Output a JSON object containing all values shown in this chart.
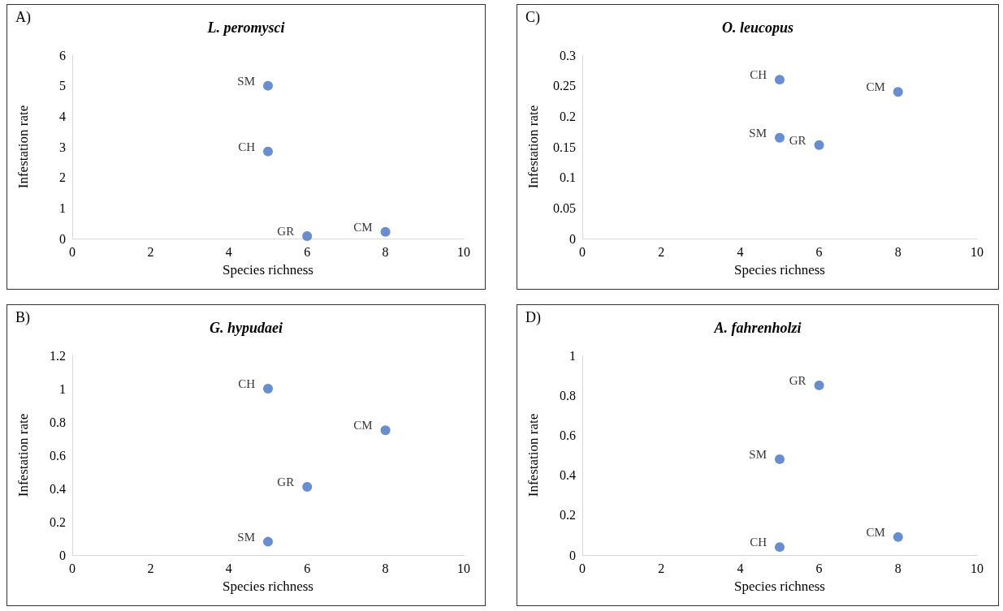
{
  "chart_data": [
    {
      "type": "scatter",
      "title": "L. peromysci",
      "annotations": [
        "A)"
      ],
      "xlabel": "Species richness",
      "ylabel": "Infestation rate",
      "xlim": [
        0,
        10
      ],
      "xticks": [
        0,
        2,
        4,
        6,
        8,
        10
      ],
      "ylim": [
        0,
        6
      ],
      "yticks": [
        0,
        1,
        2,
        3,
        4,
        5,
        6
      ],
      "grid": false,
      "legend": false,
      "marker": "circle",
      "series": [
        {
          "name": "SM",
          "color": "#4472c4",
          "x": [
            5
          ],
          "values": [
            5.0
          ]
        },
        {
          "name": "CH",
          "color": "#4472c4",
          "x": [
            5
          ],
          "values": [
            2.85
          ]
        },
        {
          "name": "GR",
          "color": "#4472c4",
          "x": [
            6
          ],
          "values": [
            0.08
          ]
        },
        {
          "name": "CM",
          "color": "#4472c4",
          "x": [
            8
          ],
          "values": [
            0.22
          ]
        }
      ]
    },
    {
      "type": "scatter",
      "title": "O. leucopus",
      "annotations": [
        "C)"
      ],
      "xlabel": "Species richness",
      "ylabel": "Infestation rate",
      "xlim": [
        0,
        10
      ],
      "xticks": [
        0,
        2,
        4,
        6,
        8,
        10
      ],
      "ylim": [
        0,
        0.3
      ],
      "yticks": [
        0,
        0.05,
        0.1,
        0.15,
        0.2,
        0.25,
        0.3
      ],
      "grid": false,
      "legend": false,
      "marker": "circle",
      "series": [
        {
          "name": "CH",
          "color": "#4472c4",
          "x": [
            5
          ],
          "values": [
            0.26
          ]
        },
        {
          "name": "CM",
          "color": "#4472c4",
          "x": [
            8
          ],
          "values": [
            0.24
          ]
        },
        {
          "name": "SM",
          "color": "#4472c4",
          "x": [
            5
          ],
          "values": [
            0.165
          ]
        },
        {
          "name": "GR",
          "color": "#4472c4",
          "x": [
            6
          ],
          "values": [
            0.153
          ]
        }
      ]
    },
    {
      "type": "scatter",
      "title": "G. hypudaei",
      "annotations": [
        "B)"
      ],
      "xlabel": "Species richness",
      "ylabel": "Infestation rate",
      "xlim": [
        0,
        10
      ],
      "xticks": [
        0,
        2,
        4,
        6,
        8,
        10
      ],
      "ylim": [
        0,
        1.2
      ],
      "yticks": [
        0,
        0.2,
        0.4,
        0.6,
        0.8,
        1,
        1.2
      ],
      "grid": false,
      "legend": false,
      "marker": "circle",
      "series": [
        {
          "name": "CH",
          "color": "#4472c4",
          "x": [
            5
          ],
          "values": [
            1.0
          ]
        },
        {
          "name": "CM",
          "color": "#4472c4",
          "x": [
            8
          ],
          "values": [
            0.75
          ]
        },
        {
          "name": "GR",
          "color": "#4472c4",
          "x": [
            6
          ],
          "values": [
            0.41
          ]
        },
        {
          "name": "SM",
          "color": "#4472c4",
          "x": [
            5
          ],
          "values": [
            0.08
          ]
        }
      ]
    },
    {
      "type": "scatter",
      "title": "A. fahrenholzi",
      "annotations": [
        "D)"
      ],
      "xlabel": "Species richness",
      "ylabel": "Infestation rate",
      "xlim": [
        0,
        10
      ],
      "xticks": [
        0,
        2,
        4,
        6,
        8,
        10
      ],
      "ylim": [
        0,
        1
      ],
      "yticks": [
        0,
        0.2,
        0.4,
        0.6,
        0.8,
        1
      ],
      "grid": false,
      "legend": false,
      "marker": "circle",
      "series": [
        {
          "name": "GR",
          "color": "#4472c4",
          "x": [
            6
          ],
          "values": [
            0.85
          ]
        },
        {
          "name": "SM",
          "color": "#4472c4",
          "x": [
            5
          ],
          "values": [
            0.48
          ]
        },
        {
          "name": "CH",
          "color": "#4472c4",
          "x": [
            5
          ],
          "values": [
            0.04
          ]
        },
        {
          "name": "CM",
          "color": "#4472c4",
          "x": [
            8
          ],
          "values": [
            0.09
          ]
        }
      ]
    }
  ]
}
